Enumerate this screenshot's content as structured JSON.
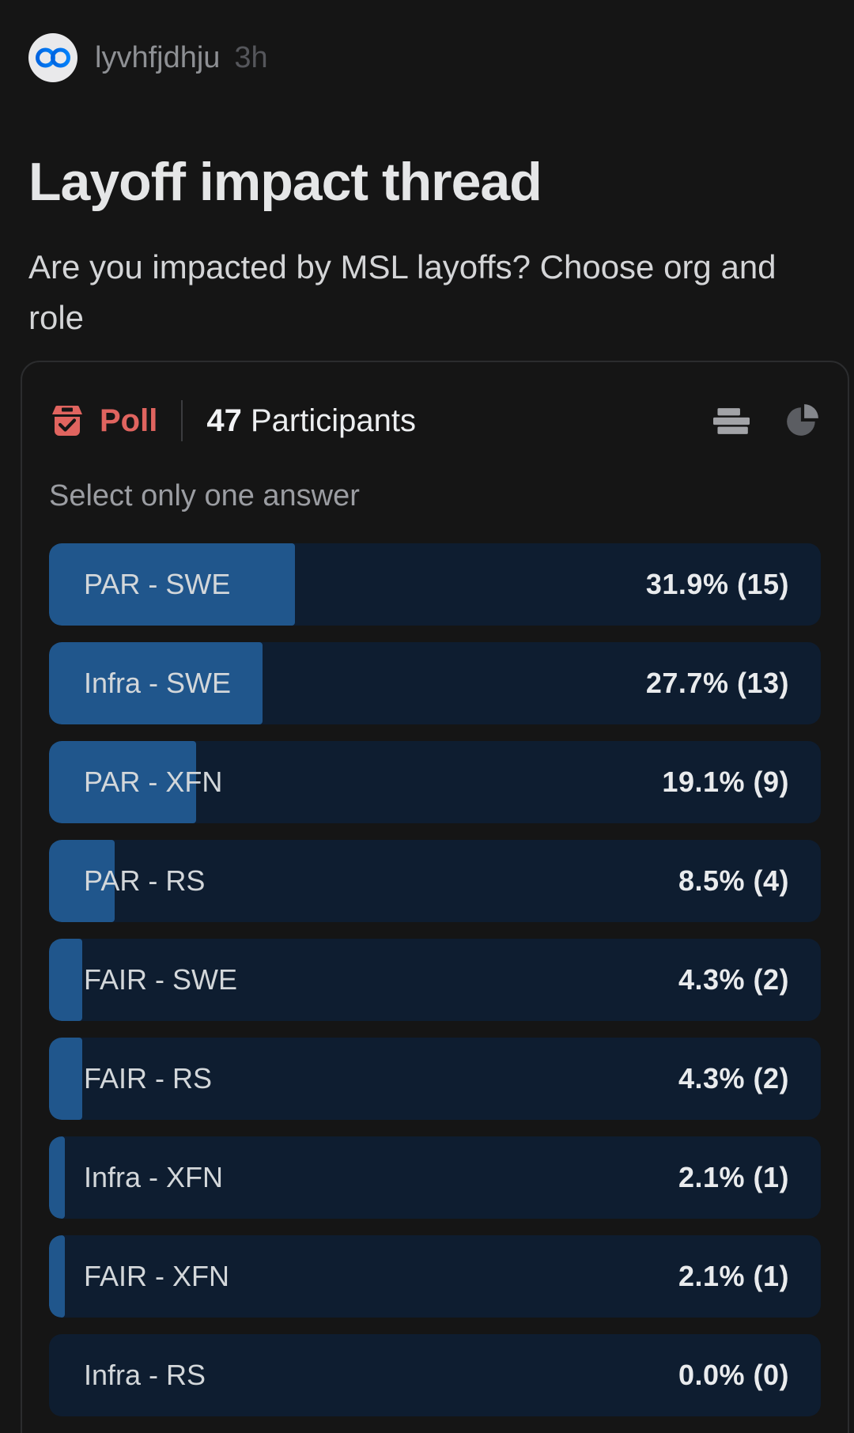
{
  "post": {
    "avatar_icon": "meta-logo",
    "username": "lyvhfjdhju",
    "timestamp": "3h",
    "title": "Layoff impact thread",
    "body": "Are you impacted by MSL layoffs? Choose org and role"
  },
  "poll": {
    "icon": "ballot-box-icon",
    "type_label": "Poll",
    "participants_count": "47",
    "participants_label": "Participants",
    "instruction": "Select only one answer",
    "view_toggles": [
      {
        "icon": "bar-view-icon",
        "active": true
      },
      {
        "icon": "pie-view-icon",
        "active": false
      }
    ],
    "options": [
      {
        "label": "PAR - SWE",
        "percent": 31.9,
        "votes": 15,
        "value_label": "31.9% (15)"
      },
      {
        "label": "Infra - SWE",
        "percent": 27.7,
        "votes": 13,
        "value_label": "27.7% (13)"
      },
      {
        "label": "PAR - XFN",
        "percent": 19.1,
        "votes": 9,
        "value_label": "19.1% (9)"
      },
      {
        "label": "PAR - RS",
        "percent": 8.5,
        "votes": 4,
        "value_label": "8.5% (4)"
      },
      {
        "label": "FAIR - SWE",
        "percent": 4.3,
        "votes": 2,
        "value_label": "4.3% (2)"
      },
      {
        "label": "FAIR - RS",
        "percent": 4.3,
        "votes": 2,
        "value_label": "4.3% (2)"
      },
      {
        "label": "Infra - XFN",
        "percent": 2.1,
        "votes": 1,
        "value_label": "2.1% (1)"
      },
      {
        "label": "FAIR - XFN",
        "percent": 2.1,
        "votes": 1,
        "value_label": "2.1% (1)"
      },
      {
        "label": "Infra - RS",
        "percent": 0.0,
        "votes": 0,
        "value_label": "0.0% (0)"
      }
    ]
  },
  "colors": {
    "page_bg": "#151515",
    "accent_red": "#e0645f",
    "bar_track": "#0e1d30",
    "bar_fill": "#20568c",
    "meta_blue_start": "#0064e0",
    "meta_blue_end": "#0082fb"
  }
}
